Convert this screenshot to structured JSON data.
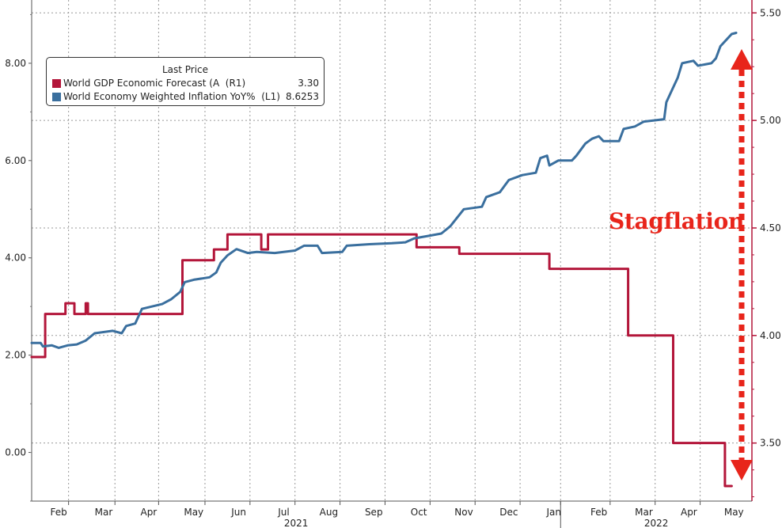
{
  "chart_data": {
    "type": "line",
    "title": "",
    "xlabel": "",
    "ylabel": "",
    "years": [
      "2021",
      "2022"
    ],
    "x_ticks": [
      {
        "label": "Feb",
        "t": 0.6
      },
      {
        "label": "Mar",
        "t": 1.6
      },
      {
        "label": "Apr",
        "t": 2.6
      },
      {
        "label": "May",
        "t": 3.6
      },
      {
        "label": "Jun",
        "t": 4.6
      },
      {
        "label": "Jul",
        "t": 5.6
      },
      {
        "label": "Aug",
        "t": 6.6
      },
      {
        "label": "Sep",
        "t": 7.6
      },
      {
        "label": "Oct",
        "t": 8.6
      },
      {
        "label": "Nov",
        "t": 9.6
      },
      {
        "label": "Dec",
        "t": 10.6
      },
      {
        "label": "Jan",
        "t": 11.6
      },
      {
        "label": "Feb",
        "t": 12.6
      },
      {
        "label": "Mar",
        "t": 13.6
      },
      {
        "label": "Apr",
        "t": 14.6
      },
      {
        "label": "May",
        "t": 15.6
      }
    ],
    "x_range": [
      0,
      16.0
    ],
    "month_boundaries": [
      0.82,
      1.85,
      2.82,
      3.85,
      4.85,
      5.85,
      6.85,
      7.85,
      8.85,
      9.85,
      10.85,
      11.75,
      12.85,
      13.85,
      14.85
    ],
    "year_boundary": 11.75,
    "left_axis": {
      "ylim": [
        -1.0,
        9.3
      ],
      "ticks": [
        0,
        2,
        4,
        6,
        8
      ],
      "tick_labels": [
        "0.00",
        "2.00",
        "4.00",
        "6.00",
        "8.00"
      ]
    },
    "right_axis": {
      "ylim": [
        3.23,
        5.56
      ],
      "ticks": [
        3.5,
        4.0,
        4.5,
        5.0,
        5.5
      ],
      "tick_labels": [
        "3.50",
        "4.00",
        "4.50",
        "5.00",
        "5.50"
      ]
    },
    "series": [
      {
        "name": "World GDP Economic Forecast (A  (R1)",
        "axis": "right",
        "color": "#b3163a",
        "last": "3.30",
        "step": true,
        "points": [
          [
            0.0,
            3.9
          ],
          [
            0.3,
            3.9
          ],
          [
            0.3,
            4.1
          ],
          [
            0.75,
            4.1
          ],
          [
            0.75,
            4.15
          ],
          [
            0.95,
            4.15
          ],
          [
            0.95,
            4.1
          ],
          [
            1.2,
            4.1
          ],
          [
            1.2,
            4.15
          ],
          [
            1.25,
            4.15
          ],
          [
            1.25,
            4.1
          ],
          [
            3.35,
            4.1
          ],
          [
            3.35,
            4.35
          ],
          [
            4.05,
            4.35
          ],
          [
            4.05,
            4.4
          ],
          [
            4.35,
            4.4
          ],
          [
            4.35,
            4.47
          ],
          [
            5.1,
            4.47
          ],
          [
            5.1,
            4.4
          ],
          [
            5.25,
            4.4
          ],
          [
            5.25,
            4.47
          ],
          [
            8.55,
            4.47
          ],
          [
            8.55,
            4.41
          ],
          [
            9.5,
            4.41
          ],
          [
            9.5,
            4.38
          ],
          [
            11.5,
            4.38
          ],
          [
            11.5,
            4.31
          ],
          [
            13.25,
            4.31
          ],
          [
            13.25,
            4.0
          ],
          [
            14.25,
            4.0
          ],
          [
            14.25,
            3.5
          ],
          [
            15.4,
            3.5
          ],
          [
            15.4,
            3.3
          ],
          [
            15.55,
            3.3
          ]
        ]
      },
      {
        "name": "World Economy Weighted Inflation YoY%  (L1)",
        "axis": "left",
        "color": "#3a6f9e",
        "last": "8.6253",
        "step": false,
        "points": [
          [
            0.0,
            2.25
          ],
          [
            0.2,
            2.25
          ],
          [
            0.25,
            2.18
          ],
          [
            0.45,
            2.2
          ],
          [
            0.6,
            2.15
          ],
          [
            0.8,
            2.2
          ],
          [
            1.0,
            2.22
          ],
          [
            1.2,
            2.3
          ],
          [
            1.4,
            2.45
          ],
          [
            1.8,
            2.5
          ],
          [
            2.0,
            2.45
          ],
          [
            2.1,
            2.6
          ],
          [
            2.3,
            2.65
          ],
          [
            2.45,
            2.95
          ],
          [
            2.9,
            3.05
          ],
          [
            3.1,
            3.15
          ],
          [
            3.3,
            3.3
          ],
          [
            3.4,
            3.5
          ],
          [
            3.6,
            3.55
          ],
          [
            3.95,
            3.6
          ],
          [
            4.1,
            3.7
          ],
          [
            4.2,
            3.9
          ],
          [
            4.35,
            4.05
          ],
          [
            4.55,
            4.18
          ],
          [
            4.8,
            4.1
          ],
          [
            5.0,
            4.12
          ],
          [
            5.4,
            4.1
          ],
          [
            5.85,
            4.15
          ],
          [
            6.05,
            4.25
          ],
          [
            6.35,
            4.25
          ],
          [
            6.45,
            4.1
          ],
          [
            6.9,
            4.12
          ],
          [
            7.0,
            4.25
          ],
          [
            7.5,
            4.28
          ],
          [
            8.0,
            4.3
          ],
          [
            8.3,
            4.32
          ],
          [
            8.5,
            4.4
          ],
          [
            8.8,
            4.45
          ],
          [
            9.1,
            4.5
          ],
          [
            9.3,
            4.65
          ],
          [
            9.6,
            5.0
          ],
          [
            10.0,
            5.05
          ],
          [
            10.1,
            5.25
          ],
          [
            10.4,
            5.35
          ],
          [
            10.6,
            5.6
          ],
          [
            10.9,
            5.7
          ],
          [
            11.2,
            5.75
          ],
          [
            11.3,
            6.05
          ],
          [
            11.45,
            6.1
          ],
          [
            11.5,
            5.9
          ],
          [
            11.7,
            6.0
          ],
          [
            12.0,
            6.0
          ],
          [
            12.1,
            6.1
          ],
          [
            12.3,
            6.35
          ],
          [
            12.45,
            6.45
          ],
          [
            12.6,
            6.5
          ],
          [
            12.7,
            6.4
          ],
          [
            13.05,
            6.4
          ],
          [
            13.15,
            6.65
          ],
          [
            13.4,
            6.7
          ],
          [
            13.6,
            6.8
          ],
          [
            14.05,
            6.85
          ],
          [
            14.1,
            7.2
          ],
          [
            14.2,
            7.4
          ],
          [
            14.35,
            7.7
          ],
          [
            14.45,
            8.0
          ],
          [
            14.7,
            8.05
          ],
          [
            14.8,
            7.95
          ],
          [
            15.1,
            8.0
          ],
          [
            15.2,
            8.1
          ],
          [
            15.3,
            8.35
          ],
          [
            15.45,
            8.5
          ],
          [
            15.55,
            8.6
          ],
          [
            15.65,
            8.625
          ]
        ]
      }
    ],
    "legend": {
      "title": "Last Price",
      "position": "top-left"
    },
    "annotation": "Stagflation"
  }
}
